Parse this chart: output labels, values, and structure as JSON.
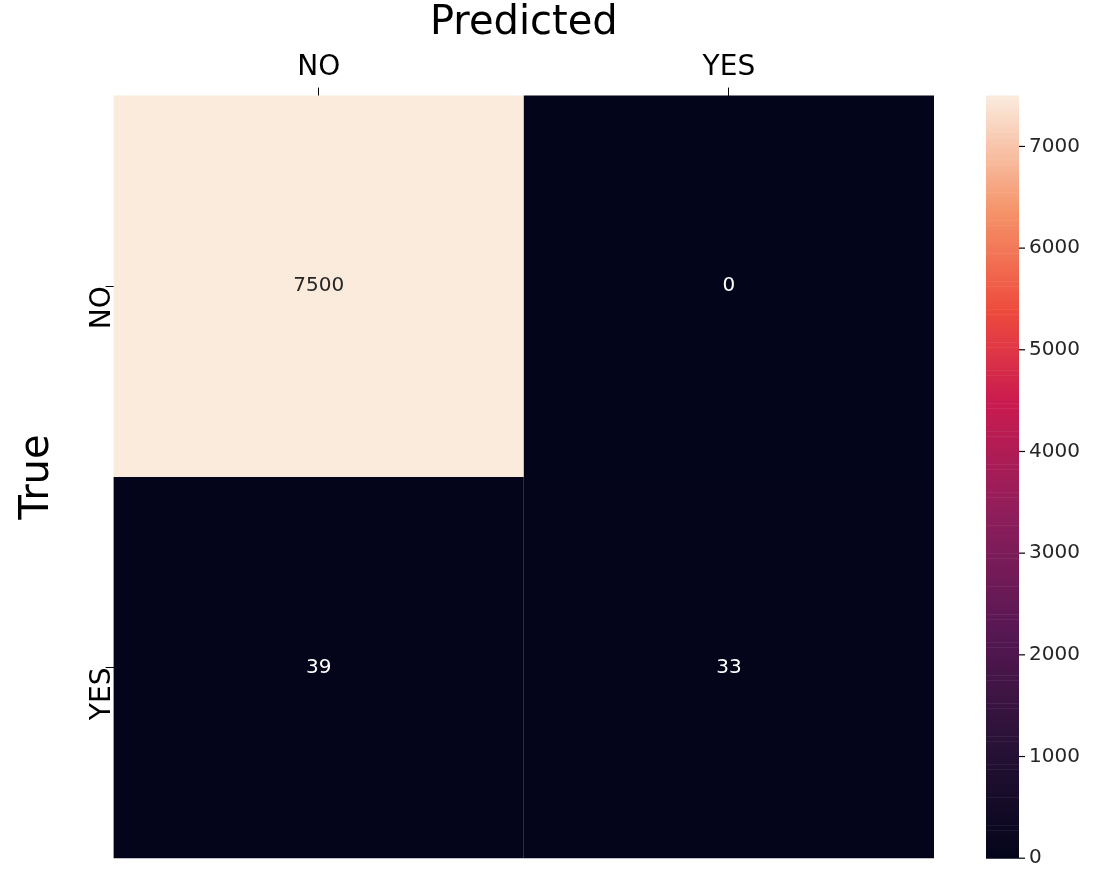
{
  "chart_data": {
    "type": "heatmap",
    "xlabel": "Predicted",
    "ylabel": "True",
    "categories": [
      "NO",
      "YES"
    ],
    "y_categories": [
      "NO",
      "YES"
    ],
    "cells": [
      [
        7500,
        0
      ],
      [
        39,
        33
      ]
    ],
    "data_labels": true,
    "clim": [
      0,
      7500
    ],
    "cticks": [
      0,
      1000,
      2000,
      3000,
      4000,
      5000,
      6000,
      7000
    ]
  }
}
